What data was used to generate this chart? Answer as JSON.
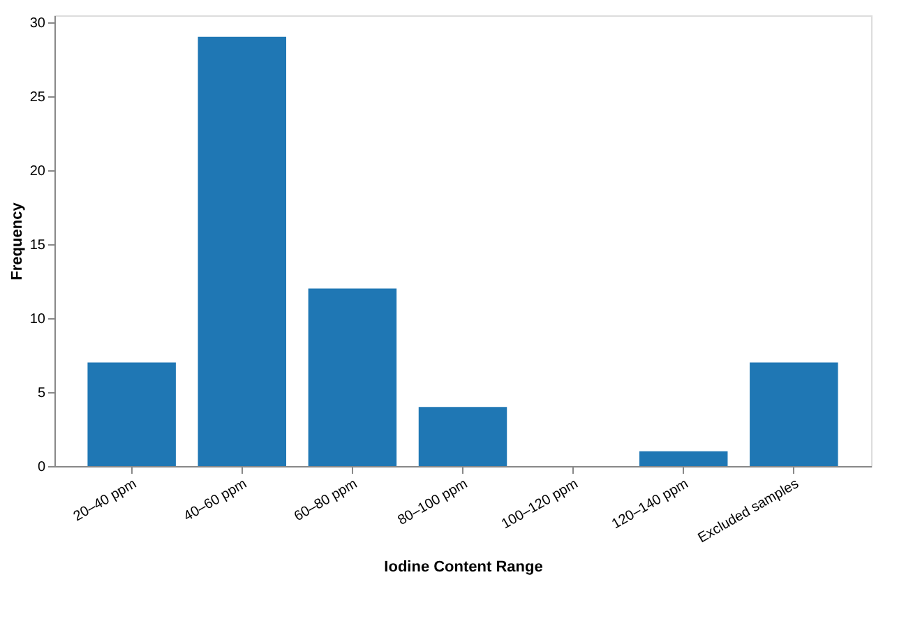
{
  "chart_data": {
    "type": "bar",
    "xlabel": "Iodine Content Range",
    "ylabel": "Frequency",
    "categories": [
      "20–40 ppm",
      "40–60 ppm",
      "60–80 ppm",
      "80–100 ppm",
      "100–120 ppm",
      "120–140 ppm",
      "Excluded samples"
    ],
    "values": [
      7,
      29,
      12,
      4,
      0,
      1,
      7
    ],
    "color": "#1f77b4",
    "ylim": [
      0,
      30.45
    ],
    "yticks": [
      0,
      5,
      10,
      15,
      20,
      25,
      30
    ],
    "grid": false
  }
}
